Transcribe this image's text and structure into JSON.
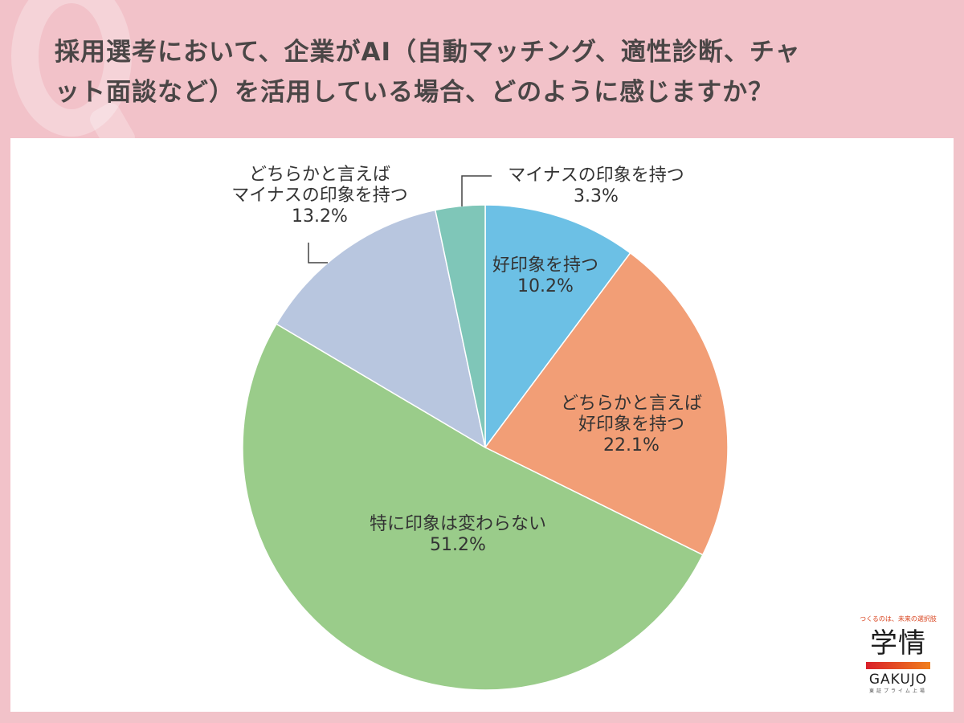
{
  "title": {
    "line1": "採用選考において、企業がAI（自動マッチング、適性診断、チャ",
    "line2": "ット面談など）を活用している場合、どのように感じますか？"
  },
  "chart_data": {
    "type": "pie",
    "title": "採用選考において、企業がAI（自動マッチング、適性診断、チャット面談など）を活用している場合、どのように感じますか？",
    "start_angle": "12 o'clock",
    "direction": "clockwise",
    "categories": [
      "好印象を持つ",
      "どちらかと言えば好印象を持つ",
      "特に印象は変わらない",
      "どちらかと言えばマイナスの印象を持つ",
      "マイナスの印象を持つ"
    ],
    "values": [
      10.2,
      22.1,
      51.2,
      13.2,
      3.3
    ],
    "unit": "%",
    "colors": [
      "#6cc0e5",
      "#f29e76",
      "#9acc8a",
      "#b8c6df",
      "#7fc6b8"
    ]
  },
  "labels": [
    {
      "line1": "好印象を持つ",
      "line2": "10.2%"
    },
    {
      "line1": "どちらかと言えば",
      "line2": "好印象を持つ",
      "line3": "22.1%"
    },
    {
      "line1": "特に印象は変わらない",
      "line2": "51.2%"
    },
    {
      "line1": "どちらかと言えば",
      "line2": "マイナスの印象を持つ",
      "line3": "13.2%"
    },
    {
      "line1": "マイナスの印象を持つ",
      "line2": "3.3%"
    }
  ],
  "logo": {
    "tagline": "つくるのは、未来の選択肢",
    "kanji": "学情",
    "name": "GAKUJO",
    "sub": "東証プライム上場"
  }
}
